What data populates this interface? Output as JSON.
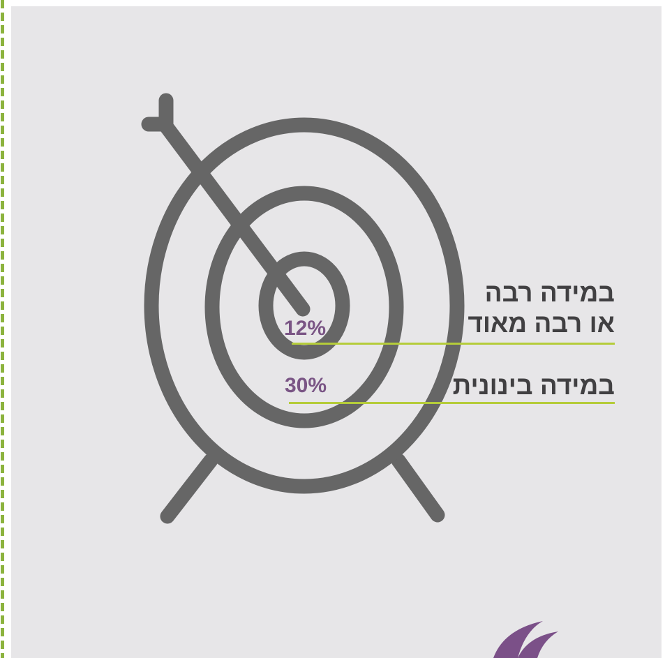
{
  "colors": {
    "panel_background": "#e7e6e8",
    "target_stroke": "#666666",
    "leader_line": "#b5cc3a",
    "percent_text": "#7a5585",
    "label_text": "#414042",
    "dashed_border": "#8cb33e",
    "logo": "#7b5088"
  },
  "icon": "target-with-arrow-icon",
  "items": [
    {
      "percent": "12%",
      "label_lines": [
        "במידה רבה",
        "או רבה מאוד"
      ]
    },
    {
      "percent": "30%",
      "label_lines": [
        "במידה בינונית"
      ]
    }
  ],
  "logo_icon": "swirl-logo-icon"
}
